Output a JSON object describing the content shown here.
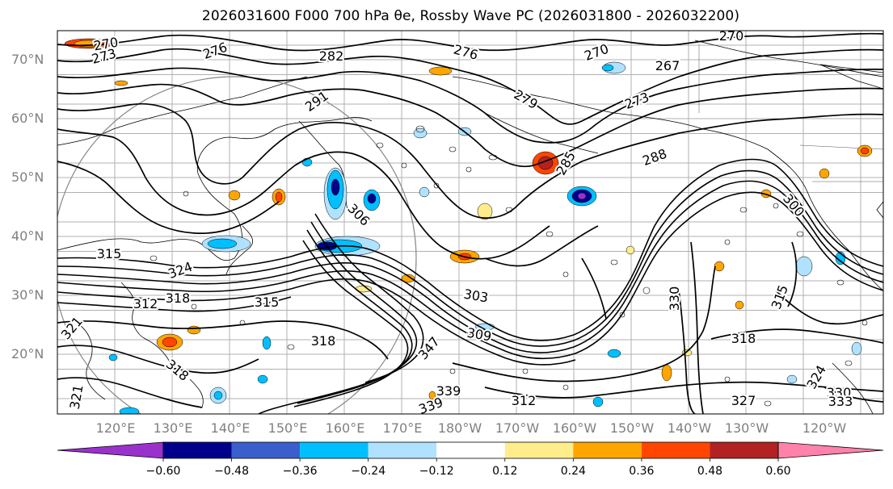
{
  "title": "2026031600 F000 700 hPa θe, Rossby Wave PC (2026031800 - 2026032200)",
  "latitude_labels": [
    "70°N",
    "60°N",
    "50°N",
    "40°N",
    "30°N",
    "20°N"
  ],
  "longitude_labels": [
    "120°E",
    "130°E",
    "140°E",
    "150°E",
    "160°E",
    "170°E",
    "180°W",
    "170°W",
    "160°W",
    "150°W",
    "140°W",
    "130°W",
    "120°W"
  ],
  "colorbar": {
    "ticks": [
      "−0.60",
      "−0.48",
      "−0.36",
      "−0.24",
      "−0.12",
      "0.12",
      "0.24",
      "0.36",
      "0.48",
      "0.60"
    ],
    "colors": [
      "#9932CC",
      "#00008B",
      "#3A5FCD",
      "#00BFFF",
      "#B0E2FF",
      "#FFFFFF",
      "#FFEC8B",
      "#FFA500",
      "#FF4500",
      "#B22222",
      "#FF82AB"
    ]
  },
  "contour_labels": [
    "270",
    "273",
    "276",
    "270",
    "282",
    "276",
    "270",
    "267",
    "273",
    "291",
    "279",
    "288",
    "285",
    "306",
    "300",
    "309",
    "312",
    "315",
    "318",
    "315",
    "318",
    "303",
    "312",
    "330",
    "315",
    "318",
    "321",
    "324",
    "327",
    "330",
    "333",
    "339",
    "339",
    "347",
    "321",
    "318",
    "324"
  ]
}
